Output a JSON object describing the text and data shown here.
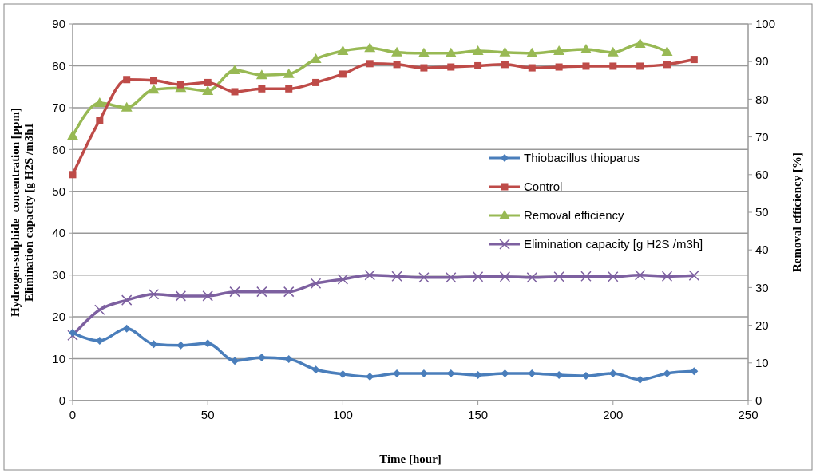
{
  "chart_data": {
    "type": "line",
    "xlabel": "Time [hour]",
    "ylabel": "Hydrogen-sulphide  concentration [ppm]\nElimination capacity [g H2S /m3h1",
    "y2label": "Removal efficiency [%]",
    "x": [
      0,
      10,
      20,
      30,
      40,
      50,
      60,
      70,
      80,
      90,
      100,
      110,
      120,
      130,
      140,
      150,
      160,
      170,
      180,
      190,
      200,
      210,
      220,
      230
    ],
    "xlim": [
      0,
      250
    ],
    "xticks": [
      0,
      50,
      100,
      150,
      200,
      250
    ],
    "ylim": [
      0,
      90
    ],
    "yticks": [
      0,
      10,
      20,
      30,
      40,
      50,
      60,
      70,
      80,
      90
    ],
    "y2lim": [
      0,
      100
    ],
    "y2ticks": [
      0,
      10,
      20,
      30,
      40,
      50,
      60,
      70,
      80,
      90,
      100
    ],
    "grid": "y",
    "legend": "right",
    "line_style": "solid",
    "series": [
      {
        "name": "Thiobacillus thioparus",
        "color": "#4a7ebb",
        "marker": "diamond",
        "values": [
          16.2,
          14.3,
          17.2,
          13.5,
          13.2,
          13.7,
          9.5,
          10.3,
          9.9,
          7.4,
          6.3,
          5.7,
          6.5,
          6.5,
          6.5,
          6.1,
          6.5,
          6.5,
          6.1,
          5.9,
          6.5,
          5,
          6.5,
          7
        ]
      },
      {
        "name": "Control",
        "color": "#be4b48",
        "marker": "square",
        "values": [
          54,
          67,
          76.7,
          76.5,
          75.5,
          76,
          73.8,
          74.5,
          74.5,
          76,
          78,
          80.5,
          80.3,
          79.5,
          79.7,
          80,
          80.3,
          79.5,
          79.7,
          79.9,
          79.9,
          79.9,
          80.3,
          81.5
        ]
      },
      {
        "name": "Removal efficiency",
        "color": "#98b954",
        "marker": "triangle",
        "axis": "y2",
        "values": [
          70.3,
          79,
          77.8,
          82.6,
          83,
          82.2,
          87.7,
          86.4,
          86.7,
          90.7,
          92.8,
          93.6,
          92.4,
          92.2,
          92.2,
          92.8,
          92.4,
          92.2,
          92.8,
          93.2,
          92.4,
          94.7,
          92.6,
          null
        ]
      },
      {
        "name": "Elimination capacity [g H2S /m3h]",
        "color": "#7d60a0",
        "marker": "cross",
        "values": [
          15.6,
          21.7,
          24,
          25.4,
          25,
          25,
          26,
          26,
          26,
          28,
          29,
          30,
          29.7,
          29.4,
          29.4,
          29.6,
          29.6,
          29.4,
          29.6,
          29.7,
          29.6,
          30,
          29.7,
          29.9
        ]
      }
    ]
  }
}
